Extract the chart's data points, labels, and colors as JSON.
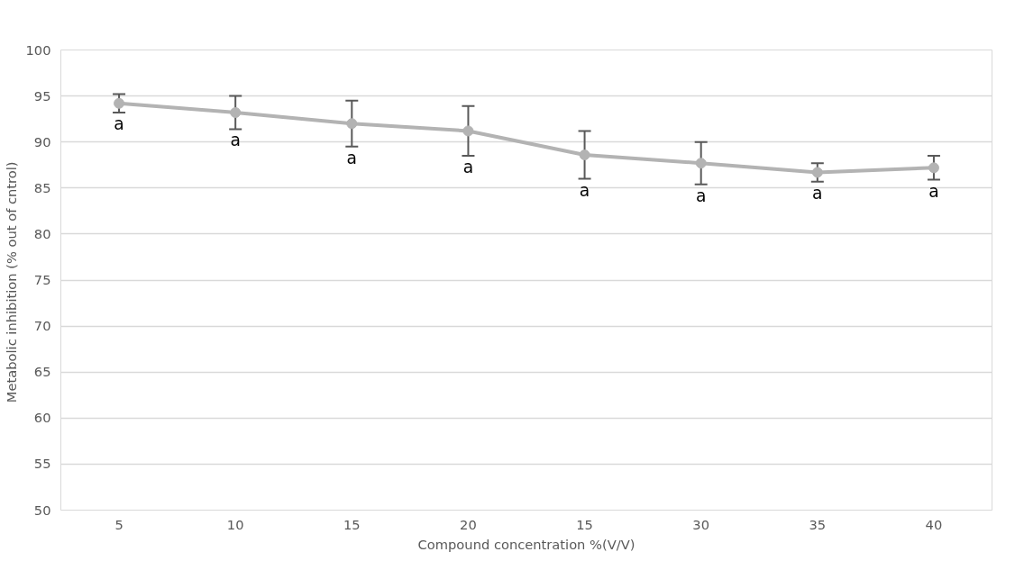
{
  "chart_data": {
    "type": "line",
    "xlabel": "Compound concentration %(V/V)",
    "ylabel": "Metabolic inhibition  (% out of cntrol)",
    "categories": [
      "5",
      "10",
      "15",
      "20",
      "15",
      "30",
      "35",
      "40"
    ],
    "series": [
      {
        "color": "#b3b3b3",
        "values": [
          94.2,
          93.2,
          92.0,
          91.2,
          88.6,
          87.7,
          86.7,
          87.2
        ],
        "errors": [
          1.0,
          1.8,
          2.5,
          2.7,
          2.6,
          2.3,
          1.0,
          1.3
        ]
      }
    ],
    "ylim": [
      50,
      100
    ],
    "yticks": [
      50,
      55,
      60,
      65,
      70,
      75,
      80,
      85,
      90,
      95,
      100
    ],
    "grid": "y",
    "marker": "circle",
    "line_style": "solid",
    "annotations": [
      "a",
      "a",
      "a",
      "a",
      "a",
      "a",
      "a",
      "a"
    ]
  }
}
